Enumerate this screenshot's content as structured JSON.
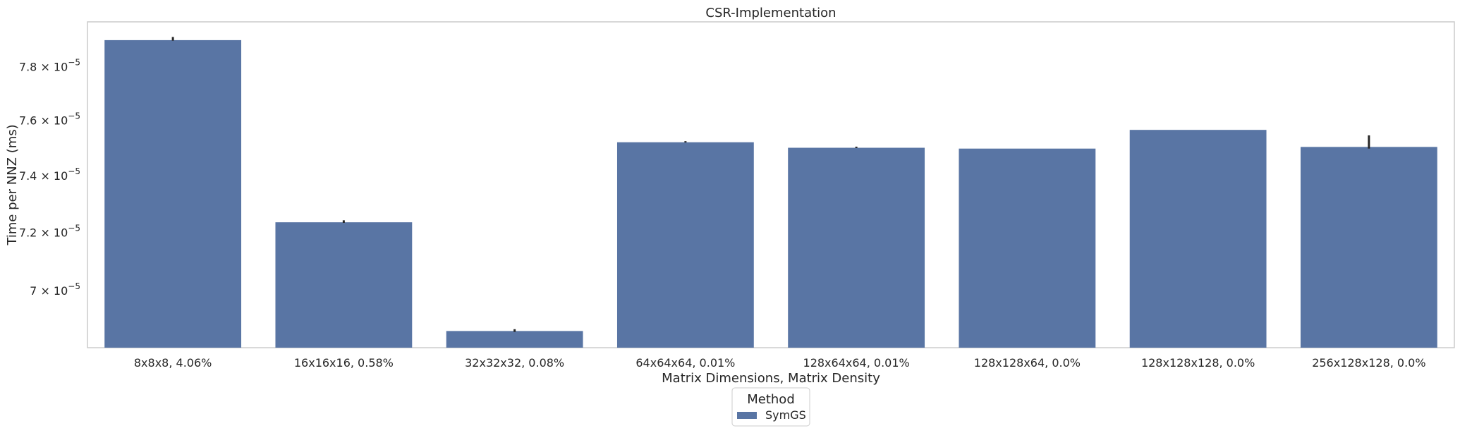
{
  "chart_data": {
    "type": "bar",
    "title": "CSR-Implementation",
    "xlabel": "Matrix Dimensions, Matrix Density",
    "ylabel": "Time per NNZ (ms)",
    "categories": [
      "8x8x8, 4.06%",
      "16x16x16, 0.58%",
      "32x32x32, 0.08%",
      "64x64x64, 0.01%",
      "128x64x64, 0.01%",
      "128x128x64, 0.0%",
      "128x128x128, 0.0%",
      "256x128x128, 0.0%"
    ],
    "series": [
      {
        "name": "SymGS",
        "color": "#5975a4",
        "values": [
          7.9e-05,
          7.235e-05,
          6.865e-05,
          7.52e-05,
          7.5e-05,
          7.497e-05,
          7.565e-05,
          7.503e-05
        ],
        "error_low": [
          7.898e-05,
          7.233e-05,
          6.862e-05,
          7.519e-05,
          7.499e-05,
          7.497e-05,
          7.565e-05,
          7.497e-05
        ],
        "error_high": [
          7.912e-05,
          7.242e-05,
          6.871e-05,
          7.524e-05,
          7.504e-05,
          7.497e-05,
          7.565e-05,
          7.545e-05
        ]
      }
    ],
    "yscale": "log",
    "ylim": [
      6.81e-05,
      7.97e-05
    ],
    "yticks": [
      {
        "value": 7e-05,
        "mantissa": "7",
        "exponent": "−5"
      },
      {
        "value": 7.2e-05,
        "mantissa": "7.2",
        "exponent": "−5"
      },
      {
        "value": 7.4e-05,
        "mantissa": "7.4",
        "exponent": "−5"
      },
      {
        "value": 7.6e-05,
        "mantissa": "7.6",
        "exponent": "−5"
      },
      {
        "value": 7.8e-05,
        "mantissa": "7.8",
        "exponent": "−5"
      }
    ],
    "grid": false,
    "legend": {
      "title": "Method",
      "position": "bottom-center"
    }
  }
}
